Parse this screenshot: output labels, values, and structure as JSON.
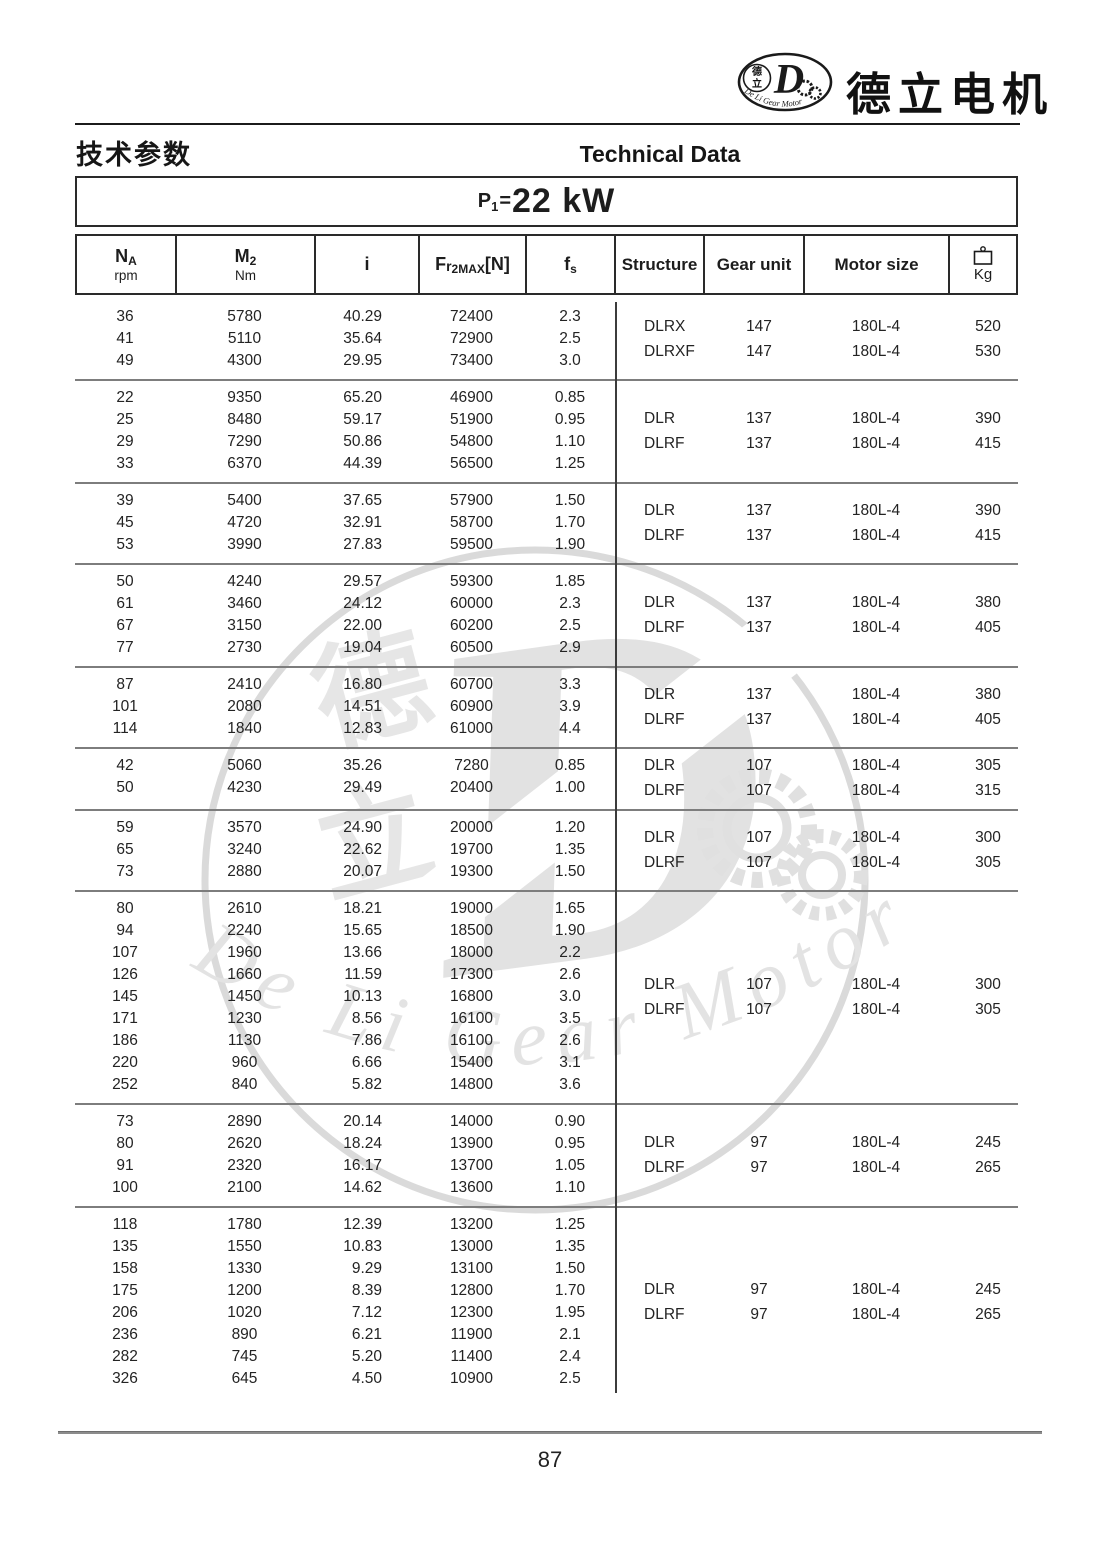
{
  "header": {
    "logo": {
      "cn": [
        "德",
        "立"
      ],
      "d": "D",
      "arc_text": "De Li Gear Motor"
    },
    "brand": "德立电机",
    "section_cn": "技术参数",
    "section_en": "Technical Data"
  },
  "power": {
    "p": "P",
    "sub": "1",
    "eq": "=",
    "value": "22 kW"
  },
  "table": {
    "head": {
      "na_main": "N",
      "na_sub": "A",
      "na_unit": "rpm",
      "m2_main": "M",
      "m2_sub": "2",
      "m2_unit": "Nm",
      "i": "i",
      "fr_f": "F",
      "fr_r": "r",
      "fr_sub": "2MAX",
      "fr_bracket": "[N]",
      "fs_main": "f",
      "fs_sub": "s",
      "structure": "Structure",
      "gear_unit": "Gear unit",
      "motor_size": "Motor size",
      "kg": "Kg"
    },
    "blocks": [
      {
        "rows": [
          [
            "36",
            "5780",
            "40.29",
            "72400",
            "2.3"
          ],
          [
            "41",
            "5110",
            "35.64",
            "72900",
            "2.5"
          ],
          [
            "49",
            "4300",
            "29.95",
            "73400",
            "3.0"
          ]
        ],
        "info": [
          [
            "DLRX",
            "147",
            "180L-4",
            "520"
          ],
          [
            "DLRXF",
            "147",
            "180L-4",
            "530"
          ]
        ]
      },
      {
        "rows": [
          [
            "22",
            "9350",
            "65.20",
            "46900",
            "0.85"
          ],
          [
            "25",
            "8480",
            "59.17",
            "51900",
            "0.95"
          ],
          [
            "29",
            "7290",
            "50.86",
            "54800",
            "1.10"
          ],
          [
            "33",
            "6370",
            "44.39",
            "56500",
            "1.25"
          ]
        ],
        "info": [
          [
            "DLR",
            "137",
            "180L-4",
            "390"
          ],
          [
            "DLRF",
            "137",
            "180L-4",
            "415"
          ]
        ]
      },
      {
        "rows": [
          [
            "39",
            "5400",
            "37.65",
            "57900",
            "1.50"
          ],
          [
            "45",
            "4720",
            "32.91",
            "58700",
            "1.70"
          ],
          [
            "53",
            "3990",
            "27.83",
            "59500",
            "1.90"
          ]
        ],
        "info": [
          [
            "DLR",
            "137",
            "180L-4",
            "390"
          ],
          [
            "DLRF",
            "137",
            "180L-4",
            "415"
          ]
        ]
      },
      {
        "rows": [
          [
            "50",
            "4240",
            "29.57",
            "59300",
            "1.85"
          ],
          [
            "61",
            "3460",
            "24.12",
            "60000",
            "2.3"
          ],
          [
            "67",
            "3150",
            "22.00",
            "60200",
            "2.5"
          ],
          [
            "77",
            "2730",
            "19.04",
            "60500",
            "2.9"
          ]
        ],
        "info": [
          [
            "DLR",
            "137",
            "180L-4",
            "380"
          ],
          [
            "DLRF",
            "137",
            "180L-4",
            "405"
          ]
        ]
      },
      {
        "rows": [
          [
            "87",
            "2410",
            "16.80",
            "60700",
            "3.3"
          ],
          [
            "101",
            "2080",
            "14.51",
            "60900",
            "3.9"
          ],
          [
            "114",
            "1840",
            "12.83",
            "61000",
            "4.4"
          ]
        ],
        "info": [
          [
            "DLR",
            "137",
            "180L-4",
            "380"
          ],
          [
            "DLRF",
            "137",
            "180L-4",
            "405"
          ]
        ]
      },
      {
        "rows": [
          [
            "42",
            "5060",
            "35.26",
            "7280",
            "0.85"
          ],
          [
            "50",
            "4230",
            "29.49",
            "20400",
            "1.00"
          ]
        ],
        "info": [
          [
            "DLR",
            "107",
            "180L-4",
            "305"
          ],
          [
            "DLRF",
            "107",
            "180L-4",
            "315"
          ]
        ]
      },
      {
        "rows": [
          [
            "59",
            "3570",
            "24.90",
            "20000",
            "1.20"
          ],
          [
            "65",
            "3240",
            "22.62",
            "19700",
            "1.35"
          ],
          [
            "73",
            "2880",
            "20.07",
            "19300",
            "1.50"
          ]
        ],
        "info": [
          [
            "DLR",
            "107",
            "180L-4",
            "300"
          ],
          [
            "DLRF",
            "107",
            "180L-4",
            "305"
          ]
        ]
      },
      {
        "rows": [
          [
            "80",
            "2610",
            "18.21",
            "19000",
            "1.65"
          ],
          [
            "94",
            "2240",
            "15.65",
            "18500",
            "1.90"
          ],
          [
            "107",
            "1960",
            "13.66",
            "18000",
            "2.2"
          ],
          [
            "126",
            "1660",
            "11.59",
            "17300",
            "2.6"
          ],
          [
            "145",
            "1450",
            "10.13",
            "16800",
            "3.0"
          ],
          [
            "171",
            "1230",
            "8.56",
            "16100",
            "3.5"
          ],
          [
            "186",
            "1130",
            "7.86",
            "16100",
            "2.6"
          ],
          [
            "220",
            "960",
            "6.66",
            "15400",
            "3.1"
          ],
          [
            "252",
            "840",
            "5.82",
            "14800",
            "3.6"
          ]
        ],
        "info": [
          [
            "DLR",
            "107",
            "180L-4",
            "300"
          ],
          [
            "DLRF",
            "107",
            "180L-4",
            "305"
          ]
        ]
      },
      {
        "rows": [
          [
            "73",
            "2890",
            "20.14",
            "14000",
            "0.90"
          ],
          [
            "80",
            "2620",
            "18.24",
            "13900",
            "0.95"
          ],
          [
            "91",
            "2320",
            "16.17",
            "13700",
            "1.05"
          ],
          [
            "100",
            "2100",
            "14.62",
            "13600",
            "1.10"
          ]
        ],
        "info": [
          [
            "DLR",
            "97",
            "180L-4",
            "245"
          ],
          [
            "DLRF",
            "97",
            "180L-4",
            "265"
          ]
        ]
      },
      {
        "rows": [
          [
            "118",
            "1780",
            "12.39",
            "13200",
            "1.25"
          ],
          [
            "135",
            "1550",
            "10.83",
            "13000",
            "1.35"
          ],
          [
            "158",
            "1330",
            "9.29",
            "13100",
            "1.50"
          ],
          [
            "175",
            "1200",
            "8.39",
            "12800",
            "1.70"
          ],
          [
            "206",
            "1020",
            "7.12",
            "12300",
            "1.95"
          ],
          [
            "236",
            "890",
            "6.21",
            "11900",
            "2.1"
          ],
          [
            "282",
            "745",
            "5.20",
            "11400",
            "2.4"
          ],
          [
            "326",
            "645",
            "4.50",
            "10900",
            "2.5"
          ]
        ],
        "info": [
          [
            "DLR",
            "97",
            "180L-4",
            "245"
          ],
          [
            "DLRF",
            "97",
            "180L-4",
            "265"
          ]
        ]
      }
    ]
  },
  "watermark": {
    "cn": [
      "德",
      "立"
    ],
    "d": "D",
    "script": "De Li Gear Motor"
  },
  "footer": {
    "page": "87"
  }
}
